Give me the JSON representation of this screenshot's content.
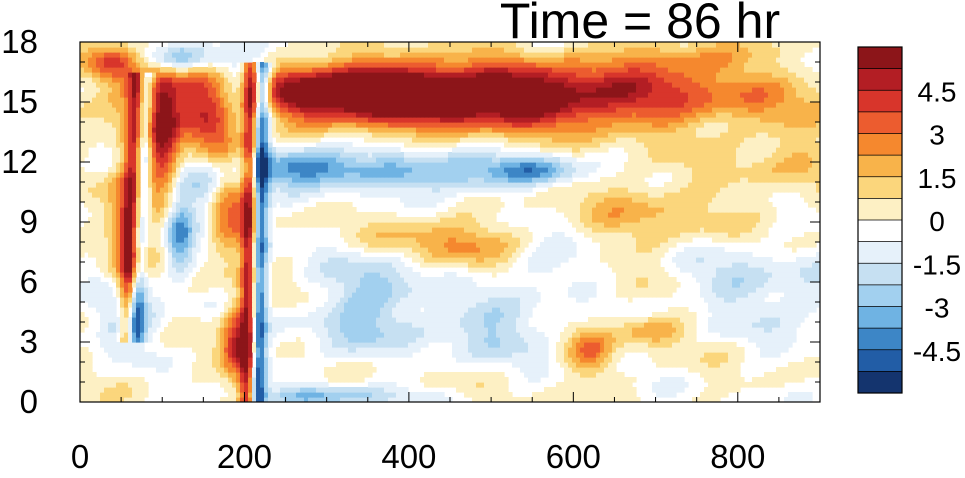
{
  "chart_data": {
    "type": "heatmap",
    "title": "Time = 86 hr",
    "xlabel": "",
    "ylabel": "",
    "x_ticks": [
      0,
      200,
      400,
      600,
      800
    ],
    "y_ticks": [
      0,
      3,
      6,
      9,
      12,
      15,
      18
    ],
    "xlim": [
      0,
      900
    ],
    "ylim": [
      0,
      18
    ],
    "grid": false,
    "colorbar": {
      "placement": "right",
      "tick_labels": [
        "4.5",
        "3",
        "1.5",
        "0",
        "-1.5",
        "-3",
        "-4.5"
      ],
      "levels": [
        5.25,
        4.5,
        3.75,
        3,
        2.25,
        1.5,
        0.75,
        0,
        -0.75,
        -1.5,
        -2.25,
        -3,
        -3.75,
        -4.5,
        -5.25
      ],
      "colors": [
        "#8c1519",
        "#b31e24",
        "#d8352b",
        "#ec5c2f",
        "#f5882e",
        "#f8b34a",
        "#fbd67c",
        "#fdf0c4",
        "#ffffff",
        "#e6f1fa",
        "#c6e0f2",
        "#a2d0ef",
        "#6fb3e3",
        "#3d86c6",
        "#225da6",
        "#14346e"
      ]
    },
    "features": [
      {
        "x": 470,
        "y": 15.3,
        "sx": 230,
        "sy": 1.15,
        "v": 7.0
      },
      {
        "x": 320,
        "y": 15.8,
        "sx": 120,
        "sy": 0.8,
        "v": 2.5
      },
      {
        "x": 280,
        "y": 11.8,
        "sx": 50,
        "sy": 0.7,
        "v": -4.6
      },
      {
        "x": 440,
        "y": 11.5,
        "sx": 70,
        "sy": 0.7,
        "v": -3.5
      },
      {
        "x": 560,
        "y": 11.6,
        "sx": 40,
        "sy": 0.5,
        "v": -2.8
      },
      {
        "x": 195,
        "y": 15.6,
        "sx": 30,
        "sy": 1.3,
        "v": -5.5
      },
      {
        "x": 160,
        "y": 14.2,
        "sx": 25,
        "sy": 1.6,
        "v": 4.5
      },
      {
        "x": 100,
        "y": 13.0,
        "sx": 14,
        "sy": 2.5,
        "v": 4.8
      },
      {
        "x": 60,
        "y": 9.0,
        "sx": 16,
        "sy": 3.0,
        "v": 3.2
      },
      {
        "x": 120,
        "y": 8.6,
        "sx": 12,
        "sy": 1.5,
        "v": -3.8
      },
      {
        "x": 150,
        "y": 11.0,
        "sx": 20,
        "sy": 1.2,
        "v": -3.0
      },
      {
        "x": 180,
        "y": 9.6,
        "sx": 16,
        "sy": 1.6,
        "v": 3.0
      },
      {
        "x": 190,
        "y": 3.0,
        "sx": 12,
        "sy": 1.4,
        "v": 4.4
      },
      {
        "x": 60,
        "y": 4.2,
        "sx": 28,
        "sy": 1.1,
        "v": -2.8
      },
      {
        "x": 40,
        "y": 17.0,
        "sx": 28,
        "sy": 0.6,
        "v": 3.5
      },
      {
        "x": 110,
        "y": 17.2,
        "sx": 40,
        "sy": 0.5,
        "v": -3.4
      },
      {
        "x": 360,
        "y": 5.6,
        "sx": 45,
        "sy": 1.5,
        "v": -2.6
      },
      {
        "x": 420,
        "y": 8.2,
        "sx": 50,
        "sy": 0.8,
        "v": 1.8
      },
      {
        "x": 480,
        "y": 7.5,
        "sx": 40,
        "sy": 0.9,
        "v": 1.5
      },
      {
        "x": 500,
        "y": 3.8,
        "sx": 55,
        "sy": 1.2,
        "v": -2.2
      },
      {
        "x": 320,
        "y": 3.2,
        "sx": 40,
        "sy": 1.0,
        "v": -1.4
      },
      {
        "x": 620,
        "y": 2.5,
        "sx": 20,
        "sy": 0.8,
        "v": 2.8
      },
      {
        "x": 690,
        "y": 3.6,
        "sx": 30,
        "sy": 0.5,
        "v": 2.2
      },
      {
        "x": 690,
        "y": 9.5,
        "sx": 60,
        "sy": 1.3,
        "v": 1.6
      },
      {
        "x": 740,
        "y": 17.3,
        "sx": 60,
        "sy": 0.6,
        "v": 2.2
      },
      {
        "x": 860,
        "y": 5.2,
        "sx": 60,
        "sy": 1.6,
        "v": -1.5
      },
      {
        "x": 780,
        "y": 6.3,
        "sx": 40,
        "sy": 1.0,
        "v": -1.2
      },
      {
        "x": 860,
        "y": 12.0,
        "sx": 70,
        "sy": 1.5,
        "v": 1.1
      },
      {
        "x": 560,
        "y": 7.0,
        "sx": 40,
        "sy": 0.8,
        "v": -1.5
      },
      {
        "x": 300,
        "y": 0.3,
        "sx": 80,
        "sy": 0.35,
        "v": -2.5
      }
    ],
    "fronts": [
      {
        "x0": 210,
        "x1": 215,
        "y0": 0,
        "y1": 17.0,
        "strength": 4.5
      },
      {
        "x0": 62,
        "x1": 75,
        "y0": 3,
        "y1": 16.5,
        "strength": 3.0
      }
    ]
  }
}
